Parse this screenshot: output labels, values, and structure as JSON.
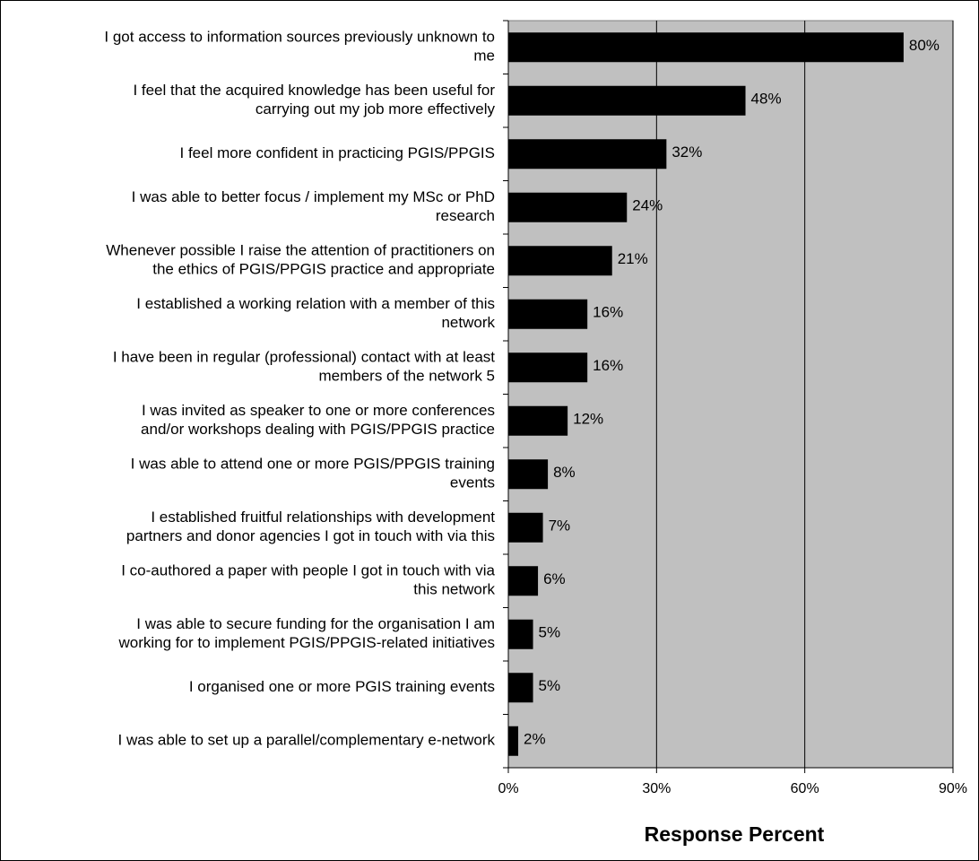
{
  "chart_data": {
    "type": "bar",
    "orientation": "horizontal",
    "title": "",
    "xlabel": "Response Percent",
    "ylabel": "",
    "xlim": [
      0,
      90
    ],
    "x_ticks": [
      "0%",
      "30%",
      "60%",
      "90%"
    ],
    "x_tick_values": [
      0,
      30,
      60,
      90
    ],
    "grid": "vertical major gridlines",
    "legend": "none",
    "plot_background": "#c0c0c0",
    "bar_color": "#000000",
    "categories": [
      [
        "I got access to information sources previously unknown to",
        "me"
      ],
      [
        "I feel that the acquired knowledge has been useful for",
        "carrying out my job more effectively"
      ],
      [
        "I feel more confident in practicing PGIS/PPGIS"
      ],
      [
        "I was able to better focus / implement my MSc or PhD",
        "research"
      ],
      [
        "Whenever possible I raise the attention of practitioners on",
        "the ethics of PGIS/PPGIS practice  and appropriate"
      ],
      [
        "I established a working relation with a member of this",
        "network"
      ],
      [
        "I have been in regular (professional) contact with at least",
        "members of the network 5"
      ],
      [
        "I was invited as speaker to one or more conferences",
        "and/or workshops dealing with PGIS/PPGIS practice"
      ],
      [
        "I was able to attend one or more PGIS/PPGIS training",
        "events"
      ],
      [
        "I established fruitful relationships with development",
        "partners and donor agencies I got in touch with via this"
      ],
      [
        "I co-authored a paper with people I got in touch with via",
        "this network"
      ],
      [
        "I was able to secure funding for the organisation I am",
        "working for  to implement PGIS/PPGIS-related initiatives"
      ],
      [
        "I organised one or more PGIS training events"
      ],
      [
        "I was able to set up a parallel/complementary e-network"
      ]
    ],
    "values": [
      80,
      48,
      32,
      24,
      21,
      16,
      16,
      12,
      8,
      7,
      6,
      5,
      5,
      2
    ],
    "value_labels": [
      "80%",
      "48%",
      "32%",
      "24%",
      "21%",
      "16%",
      "16%",
      "12%",
      "8%",
      "7%",
      "6%",
      "5%",
      "5%",
      "2%"
    ]
  }
}
